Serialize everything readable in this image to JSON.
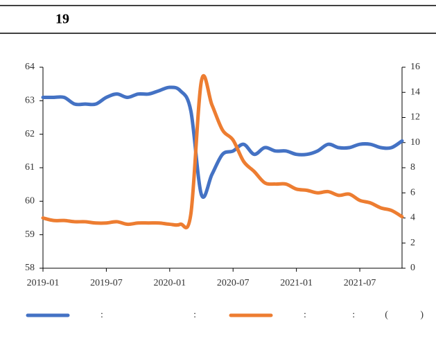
{
  "chart_data": {
    "type": "line",
    "title": "19",
    "categories": [
      "2019-01",
      null,
      null,
      null,
      null,
      null,
      "2019-07",
      null,
      null,
      null,
      null,
      null,
      "2020-01",
      null,
      null,
      null,
      null,
      null,
      "2020-07",
      null,
      null,
      null,
      null,
      null,
      "2021-01",
      null,
      null,
      null,
      null,
      null,
      "2021-07",
      null,
      null,
      null,
      null
    ],
    "series": [
      {
        "name": ":                                     :",
        "color": "#4472c4",
        "axis": "y",
        "values": [
          63.1,
          63.1,
          63.1,
          62.9,
          62.9,
          62.9,
          63.1,
          63.2,
          63.1,
          63.2,
          63.2,
          63.3,
          63.4,
          63.3,
          62.7,
          60.2,
          60.8,
          61.4,
          61.5,
          61.7,
          61.4,
          61.6,
          61.5,
          61.5,
          61.4,
          61.4,
          61.5,
          61.7,
          61.6,
          61.6,
          61.7,
          61.7,
          61.6,
          61.6,
          61.8
        ]
      },
      {
        "name": ":                    :             (              )",
        "color": "#ed7d31",
        "axis": "y2",
        "values": [
          4.0,
          3.8,
          3.8,
          3.7,
          3.7,
          3.6,
          3.6,
          3.7,
          3.5,
          3.6,
          3.6,
          3.6,
          3.5,
          3.5,
          4.3,
          14.9,
          13.0,
          11.0,
          10.2,
          8.5,
          7.7,
          6.8,
          6.7,
          6.7,
          6.3,
          6.2,
          6.0,
          6.1,
          5.8,
          5.9,
          5.4,
          5.2,
          4.8,
          4.6,
          4.1
        ]
      }
    ],
    "ylim": [
      58,
      64
    ],
    "yticks": [
      58,
      59,
      60,
      61,
      62,
      63,
      64
    ],
    "y2lim": [
      0,
      16
    ],
    "y2ticks": [
      0,
      2,
      4,
      6,
      8,
      10,
      12,
      14,
      16
    ],
    "grid": false
  }
}
